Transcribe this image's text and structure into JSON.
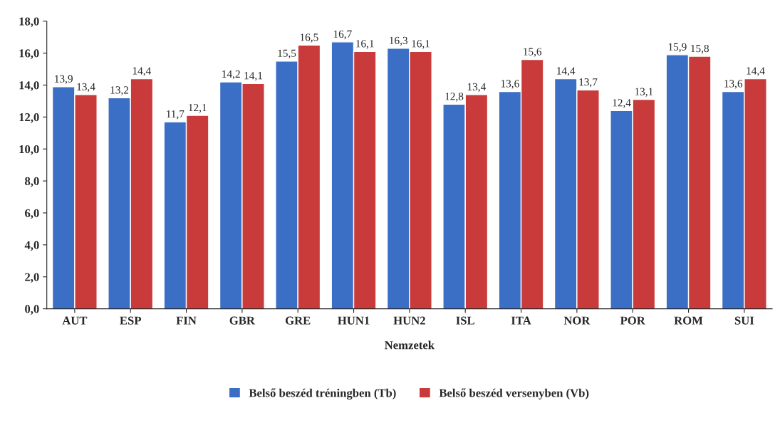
{
  "chart_data": {
    "type": "bar",
    "xlabel": "Nemzetek",
    "categories": [
      "AUT",
      "ESP",
      "FIN",
      "GBR",
      "GRE",
      "HUN1",
      "HUN2",
      "ISL",
      "ITA",
      "NOR",
      "POR",
      "ROM",
      "SUI"
    ],
    "series": [
      {
        "name": "Belső beszéd tréningben (Tb)",
        "color": "#3b6fc6",
        "values": [
          13.9,
          13.2,
          11.7,
          14.2,
          15.5,
          16.7,
          16.3,
          12.8,
          13.6,
          14.4,
          12.4,
          15.9,
          13.6
        ],
        "value_labels": [
          "13,9",
          "13,2",
          "11,7",
          "14,2",
          "15,5",
          "16,7",
          "16,3",
          "12,8",
          "13,6",
          "14,4",
          "12,4",
          "15,9",
          "13,6"
        ]
      },
      {
        "name": "Belső beszéd versenyben (Vb)",
        "color": "#c93b3b",
        "values": [
          13.4,
          14.4,
          12.1,
          14.1,
          16.5,
          16.1,
          16.1,
          13.4,
          15.6,
          13.7,
          13.1,
          15.8,
          14.4
        ],
        "value_labels": [
          "13,4",
          "14,4",
          "12,1",
          "14,1",
          "16,5",
          "16,1",
          "16,1",
          "13,4",
          "15,6",
          "13,7",
          "13,1",
          "15,8",
          "14,4"
        ]
      }
    ],
    "ylim": [
      0,
      18
    ],
    "yticks": [
      {
        "value": 0,
        "label": "0,0"
      },
      {
        "value": 2,
        "label": "2,0"
      },
      {
        "value": 4,
        "label": "4,0"
      },
      {
        "value": 6,
        "label": "6,0"
      },
      {
        "value": 8,
        "label": "8,0"
      },
      {
        "value": 10,
        "label": "10,0"
      },
      {
        "value": 12,
        "label": "12,0"
      },
      {
        "value": 14,
        "label": "14,0"
      },
      {
        "value": 16,
        "label": "16,0"
      },
      {
        "value": 18,
        "label": "18,0"
      }
    ],
    "grid": false,
    "legend": "bottom"
  }
}
